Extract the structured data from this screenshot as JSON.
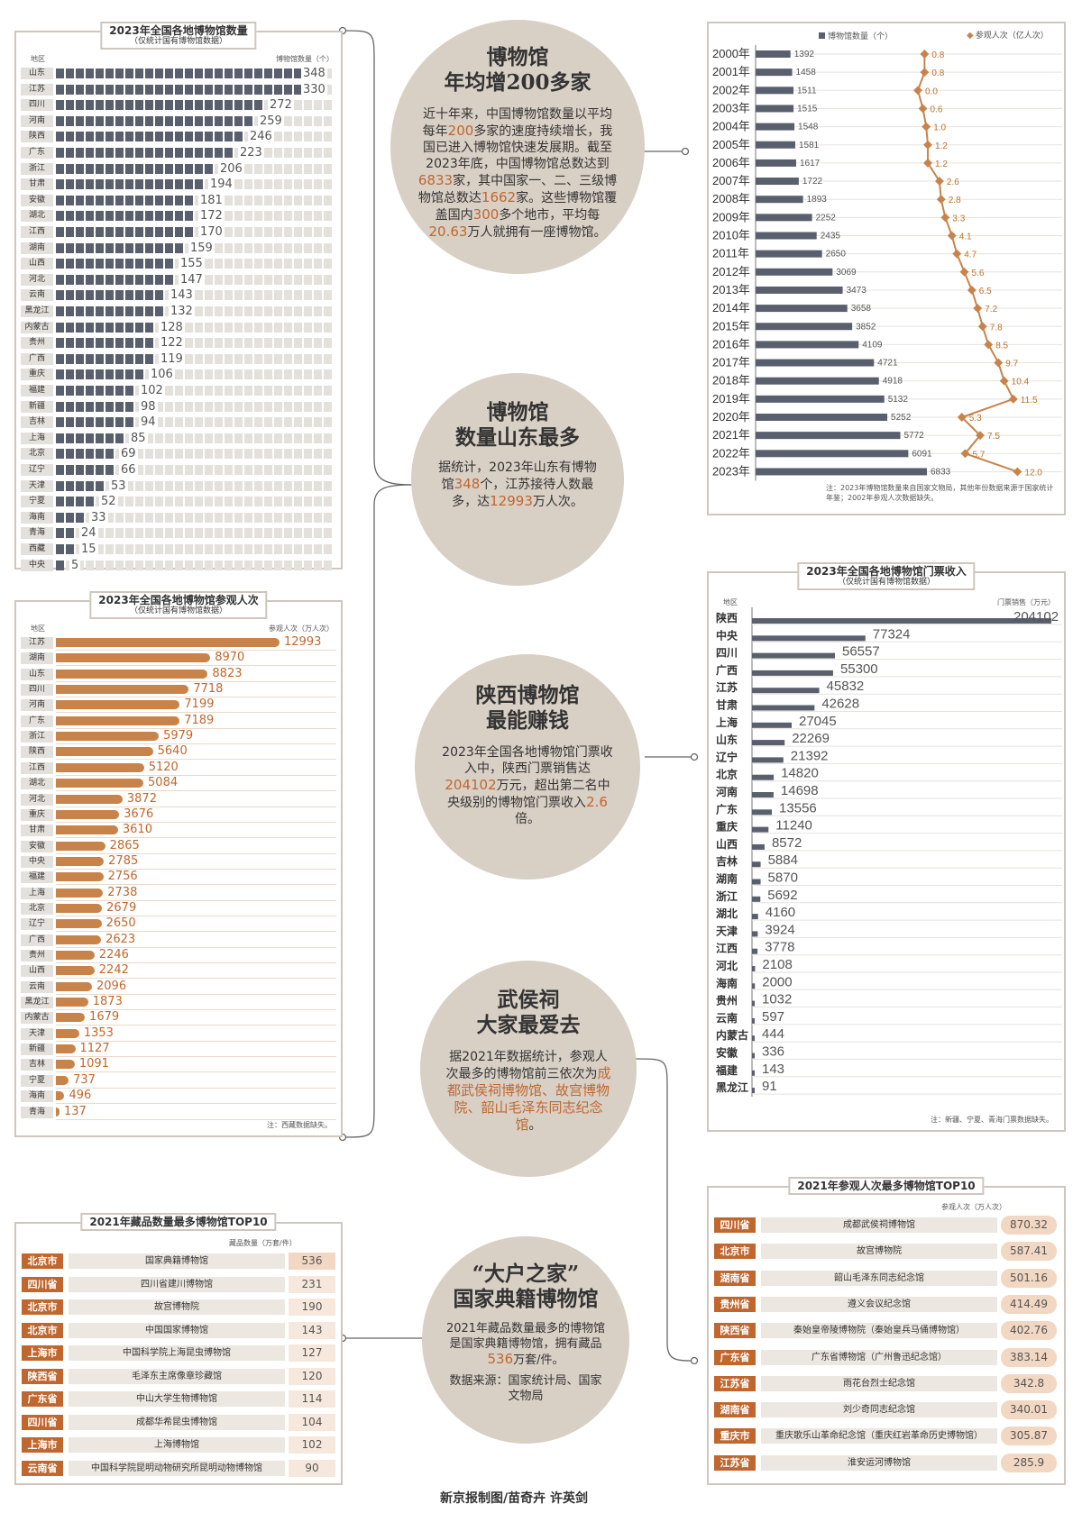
{
  "panel_count": {
    "title": "2023年全国各地博物馆数量",
    "subtitle": "（仅统计国有博物馆数据）",
    "col_region": "地区",
    "col_value": "博物馆数量（个）",
    "bar_color": "#5a5f6e",
    "rows": [
      {
        "region": "山东",
        "value": 348
      },
      {
        "region": "江苏",
        "value": 330
      },
      {
        "region": "四川",
        "value": 272
      },
      {
        "region": "河南",
        "value": 259
      },
      {
        "region": "陕西",
        "value": 246
      },
      {
        "region": "广东",
        "value": 223
      },
      {
        "region": "浙江",
        "value": 206
      },
      {
        "region": "甘肃",
        "value": 194
      },
      {
        "region": "安徽",
        "value": 181
      },
      {
        "region": "湖北",
        "value": 172
      },
      {
        "region": "江西",
        "value": 170
      },
      {
        "region": "湖南",
        "value": 159
      },
      {
        "region": "山西",
        "value": 155
      },
      {
        "region": "河北",
        "value": 147
      },
      {
        "region": "云南",
        "value": 143
      },
      {
        "region": "黑龙江",
        "value": 132
      },
      {
        "region": "内蒙古",
        "value": 128
      },
      {
        "region": "贵州",
        "value": 122
      },
      {
        "region": "广西",
        "value": 119
      },
      {
        "region": "重庆",
        "value": 106
      },
      {
        "region": "福建",
        "value": 102
      },
      {
        "region": "新疆",
        "value": 98
      },
      {
        "region": "吉林",
        "value": 94
      },
      {
        "region": "上海",
        "value": 85
      },
      {
        "region": "北京",
        "value": 69
      },
      {
        "region": "辽宁",
        "value": 66
      },
      {
        "region": "天津",
        "value": 53
      },
      {
        "region": "宁夏",
        "value": 52
      },
      {
        "region": "海南",
        "value": 33
      },
      {
        "region": "青海",
        "value": 24
      },
      {
        "region": "西藏",
        "value": 15
      },
      {
        "region": "中央",
        "value": 5
      }
    ]
  },
  "panel_visitors": {
    "title": "2023年全国各地博物馆参观人次",
    "subtitle": "（仅统计国有博物馆数据）",
    "col_region": "地区",
    "col_value": "参观人次（万人次）",
    "note": "注：西藏数据缺失。",
    "bar_color": "#c8834a",
    "rows": [
      {
        "region": "江苏",
        "value": 12993
      },
      {
        "region": "湖南",
        "value": 8970
      },
      {
        "region": "山东",
        "value": 8823
      },
      {
        "region": "四川",
        "value": 7718
      },
      {
        "region": "河南",
        "value": 7199
      },
      {
        "region": "广东",
        "value": 7189
      },
      {
        "region": "浙江",
        "value": 5979
      },
      {
        "region": "陕西",
        "value": 5640
      },
      {
        "region": "江西",
        "value": 5120
      },
      {
        "region": "湖北",
        "value": 5084
      },
      {
        "region": "河北",
        "value": 3872
      },
      {
        "region": "重庆",
        "value": 3676
      },
      {
        "region": "甘肃",
        "value": 3610
      },
      {
        "region": "安徽",
        "value": 2865
      },
      {
        "region": "中央",
        "value": 2785
      },
      {
        "region": "福建",
        "value": 2756
      },
      {
        "region": "上海",
        "value": 2738
      },
      {
        "region": "北京",
        "value": 2679
      },
      {
        "region": "辽宁",
        "value": 2650
      },
      {
        "region": "广西",
        "value": 2623
      },
      {
        "region": "贵州",
        "value": 2246
      },
      {
        "region": "山西",
        "value": 2242
      },
      {
        "region": "云南",
        "value": 2096
      },
      {
        "region": "黑龙江",
        "value": 1873
      },
      {
        "region": "内蒙古",
        "value": 1679
      },
      {
        "region": "天津",
        "value": 1353
      },
      {
        "region": "新疆",
        "value": 1127
      },
      {
        "region": "吉林",
        "value": 1091
      },
      {
        "region": "宁夏",
        "value": 737
      },
      {
        "region": "海南",
        "value": 496
      },
      {
        "region": "青海",
        "value": 137
      }
    ]
  },
  "panel_trend": {
    "legend_bar": "博物馆数量（个）",
    "legend_line": "参观人次（亿人次）",
    "note": "注：2023年博物馆数量来自国家文物局，其他年份数据来源于国家统计年鉴；2002年参观人次数据缺失。",
    "bar_color": "#5a5f6e",
    "line_color": "#c8834a",
    "rows": [
      {
        "year": "2000年",
        "count": 1392,
        "visitors": "0.8",
        "v": 0.8
      },
      {
        "year": "2001年",
        "count": 1458,
        "visitors": "0.8",
        "v": 0.8
      },
      {
        "year": "2002年",
        "count": 1511,
        "visitors": "0.0",
        "v": 0.0
      },
      {
        "year": "2003年",
        "count": 1515,
        "visitors": "0.6",
        "v": 0.6
      },
      {
        "year": "2004年",
        "count": 1548,
        "visitors": "1.0",
        "v": 1.0
      },
      {
        "year": "2005年",
        "count": 1581,
        "visitors": "1.2",
        "v": 1.2
      },
      {
        "year": "2006年",
        "count": 1617,
        "visitors": "1.2",
        "v": 1.2
      },
      {
        "year": "2007年",
        "count": 1722,
        "visitors": "2.6",
        "v": 2.6
      },
      {
        "year": "2008年",
        "count": 1893,
        "visitors": "2.8",
        "v": 2.8
      },
      {
        "year": "2009年",
        "count": 2252,
        "visitors": "3.3",
        "v": 3.3
      },
      {
        "year": "2010年",
        "count": 2435,
        "visitors": "4.1",
        "v": 4.1
      },
      {
        "year": "2011年",
        "count": 2650,
        "visitors": "4.7",
        "v": 4.7
      },
      {
        "year": "2012年",
        "count": 3069,
        "visitors": "5.6",
        "v": 5.6
      },
      {
        "year": "2013年",
        "count": 3473,
        "visitors": "6.5",
        "v": 6.5
      },
      {
        "year": "2014年",
        "count": 3658,
        "visitors": "7.2",
        "v": 7.2
      },
      {
        "year": "2015年",
        "count": 3852,
        "visitors": "7.8",
        "v": 7.8
      },
      {
        "year": "2016年",
        "count": 4109,
        "visitors": "8.5",
        "v": 8.5
      },
      {
        "year": "2017年",
        "count": 4721,
        "visitors": "9.7",
        "v": 9.7
      },
      {
        "year": "2018年",
        "count": 4918,
        "visitors": "10.4",
        "v": 10.4
      },
      {
        "year": "2019年",
        "count": 5132,
        "visitors": "11.5",
        "v": 11.5
      },
      {
        "year": "2020年",
        "count": 5252,
        "visitors": "5.3",
        "v": 5.3
      },
      {
        "year": "2021年",
        "count": 5772,
        "visitors": "7.5",
        "v": 7.5
      },
      {
        "year": "2022年",
        "count": 6091,
        "visitors": "5.7",
        "v": 5.7
      },
      {
        "year": "2023年",
        "count": 6833,
        "visitors": "12.0",
        "v": 12.0
      }
    ]
  },
  "panel_tickets": {
    "title": "2023年全国各地博物馆门票收入",
    "subtitle": "（仅统计国有博物馆数据）",
    "col_region": "地区",
    "col_value": "门票销售（万元）",
    "note": "注：新疆、宁夏、青海门票数据缺失。",
    "bar_color": "#5a5f6e",
    "rows": [
      {
        "region": "陕西",
        "value": 204102
      },
      {
        "region": "中央",
        "value": 77324
      },
      {
        "region": "四川",
        "value": 56557
      },
      {
        "region": "广西",
        "value": 55300
      },
      {
        "region": "江苏",
        "value": 45832
      },
      {
        "region": "甘肃",
        "value": 42628
      },
      {
        "region": "上海",
        "value": 27045
      },
      {
        "region": "山东",
        "value": 22269
      },
      {
        "region": "辽宁",
        "value": 21392
      },
      {
        "region": "北京",
        "value": 14820
      },
      {
        "region": "河南",
        "value": 14698
      },
      {
        "region": "广东",
        "value": 13556
      },
      {
        "region": "重庆",
        "value": 11240
      },
      {
        "region": "山西",
        "value": 8572
      },
      {
        "region": "吉林",
        "value": 5884
      },
      {
        "region": "湖南",
        "value": 5870
      },
      {
        "region": "浙江",
        "value": 5692
      },
      {
        "region": "湖北",
        "value": 4160
      },
      {
        "region": "天津",
        "value": 3924
      },
      {
        "region": "江西",
        "value": 3778
      },
      {
        "region": "河北",
        "value": 2108
      },
      {
        "region": "海南",
        "value": 2000
      },
      {
        "region": "贵州",
        "value": 1032
      },
      {
        "region": "云南",
        "value": 597
      },
      {
        "region": "内蒙古",
        "value": 444
      },
      {
        "region": "安徽",
        "value": 336
      },
      {
        "region": "福建",
        "value": 143
      },
      {
        "region": "黑龙江",
        "value": 91
      }
    ]
  },
  "panel_collections": {
    "title": "2021年藏品数量最多博物馆TOP10",
    "col_value": "藏品数量（万套/件）",
    "rows": [
      {
        "region": "北京市",
        "name": "国家典籍博物馆",
        "value": "536"
      },
      {
        "region": "四川省",
        "name": "四川省建川博物馆",
        "value": "231"
      },
      {
        "region": "北京市",
        "name": "故宫博物院",
        "value": "190"
      },
      {
        "region": "北京市",
        "name": "中国国家博物馆",
        "value": "143"
      },
      {
        "region": "上海市",
        "name": "中国科学院上海昆虫博物馆",
        "value": "127"
      },
      {
        "region": "陕西省",
        "name": "毛泽东主席像章珍藏馆",
        "value": "120"
      },
      {
        "region": "广东省",
        "name": "中山大学生物博物馆",
        "value": "114"
      },
      {
        "region": "四川省",
        "name": "成都华希昆虫博物馆",
        "value": "104"
      },
      {
        "region": "上海市",
        "name": "上海博物馆",
        "value": "102"
      },
      {
        "region": "云南省",
        "name": "中国科学院昆明动物研究所昆明动物博物馆",
        "value": "90"
      }
    ]
  },
  "panel_top_visited": {
    "title": "2021年参观人次最多博物馆TOP10",
    "col_value": "参观人次（万人次）",
    "rows": [
      {
        "region": "四川省",
        "name": "成都武侯祠博物馆",
        "value": "870.32"
      },
      {
        "region": "北京市",
        "name": "故宫博物院",
        "value": "587.41"
      },
      {
        "region": "湖南省",
        "name": "韶山毛泽东同志纪念馆",
        "value": "501.16"
      },
      {
        "region": "贵州省",
        "name": "遵义会议纪念馆",
        "value": "414.49"
      },
      {
        "region": "陕西省",
        "name": "秦始皇帝陵博物院（秦始皇兵马俑博物馆）",
        "value": "402.76"
      },
      {
        "region": "广东省",
        "name": "广东省博物馆（广州鲁迅纪念馆）",
        "value": "383.14"
      },
      {
        "region": "江苏省",
        "name": "雨花台烈士纪念馆",
        "value": "342.8"
      },
      {
        "region": "湖南省",
        "name": "刘少奇同志纪念馆",
        "value": "340.01"
      },
      {
        "region": "重庆市",
        "name": "重庆歌乐山革命纪念馆（重庆红岩革命历史博物馆）",
        "value": "305.87"
      },
      {
        "region": "江苏省",
        "name": "淮安运河博物馆",
        "value": "285.9"
      }
    ]
  },
  "circles": {
    "c1": {
      "title1": "博物馆",
      "title2": "年均增200多家",
      "p1": "近十年来，中国博物馆数量以平均每年",
      "h1": "200",
      "p2": "多家的速度持续增长，我国已进入博物馆快速发展期。截至2023年底，中国博物馆总数达到",
      "h2": "6833",
      "p3": "家，其中国家一、二、三级博物馆总数达",
      "h3": "1662",
      "p4": "家。这些博物馆覆盖国内",
      "h4": "300",
      "p5": "多个地市，平均每",
      "h5": "20.63",
      "p6": "万人就拥有一座博物馆。"
    },
    "c2": {
      "title1": "博物馆",
      "title2": "数量山东最多",
      "p1": "据统计，2023年山东有博物馆",
      "h1": "348",
      "p2": "个，江苏接待人数最多，达",
      "h2": "12993",
      "p3": "万人次。"
    },
    "c3": {
      "title1": "陕西博物馆",
      "title2": "最能赚钱",
      "p1": "2023年全国各地博物馆门票收入中，陕西门票销售达",
      "h1": "204102",
      "p2": "万元，超出第二名中央级别的博物馆门票收入",
      "h2": "2.6",
      "p3": "倍。"
    },
    "c4": {
      "title1": "武侯祠",
      "title2": "大家最爱去",
      "p1": "据2021年数据统计，参观人次最多的博物馆前三依次为",
      "h1": "成都武侯祠博物馆、故宫博物院、韶山毛泽东同志纪念馆",
      "p2": "。"
    },
    "c5": {
      "title1": "“大户之家”",
      "title2": "国家典籍博物馆",
      "p1": "2021年藏品数量最多的博物馆是国家典籍博物馆，拥有藏品",
      "h1": "536",
      "p2": "万套/件。",
      "source": "数据来源：国家统计局、国家文物局"
    }
  },
  "credit": "新京报制图/苗奇卉 许英剑"
}
